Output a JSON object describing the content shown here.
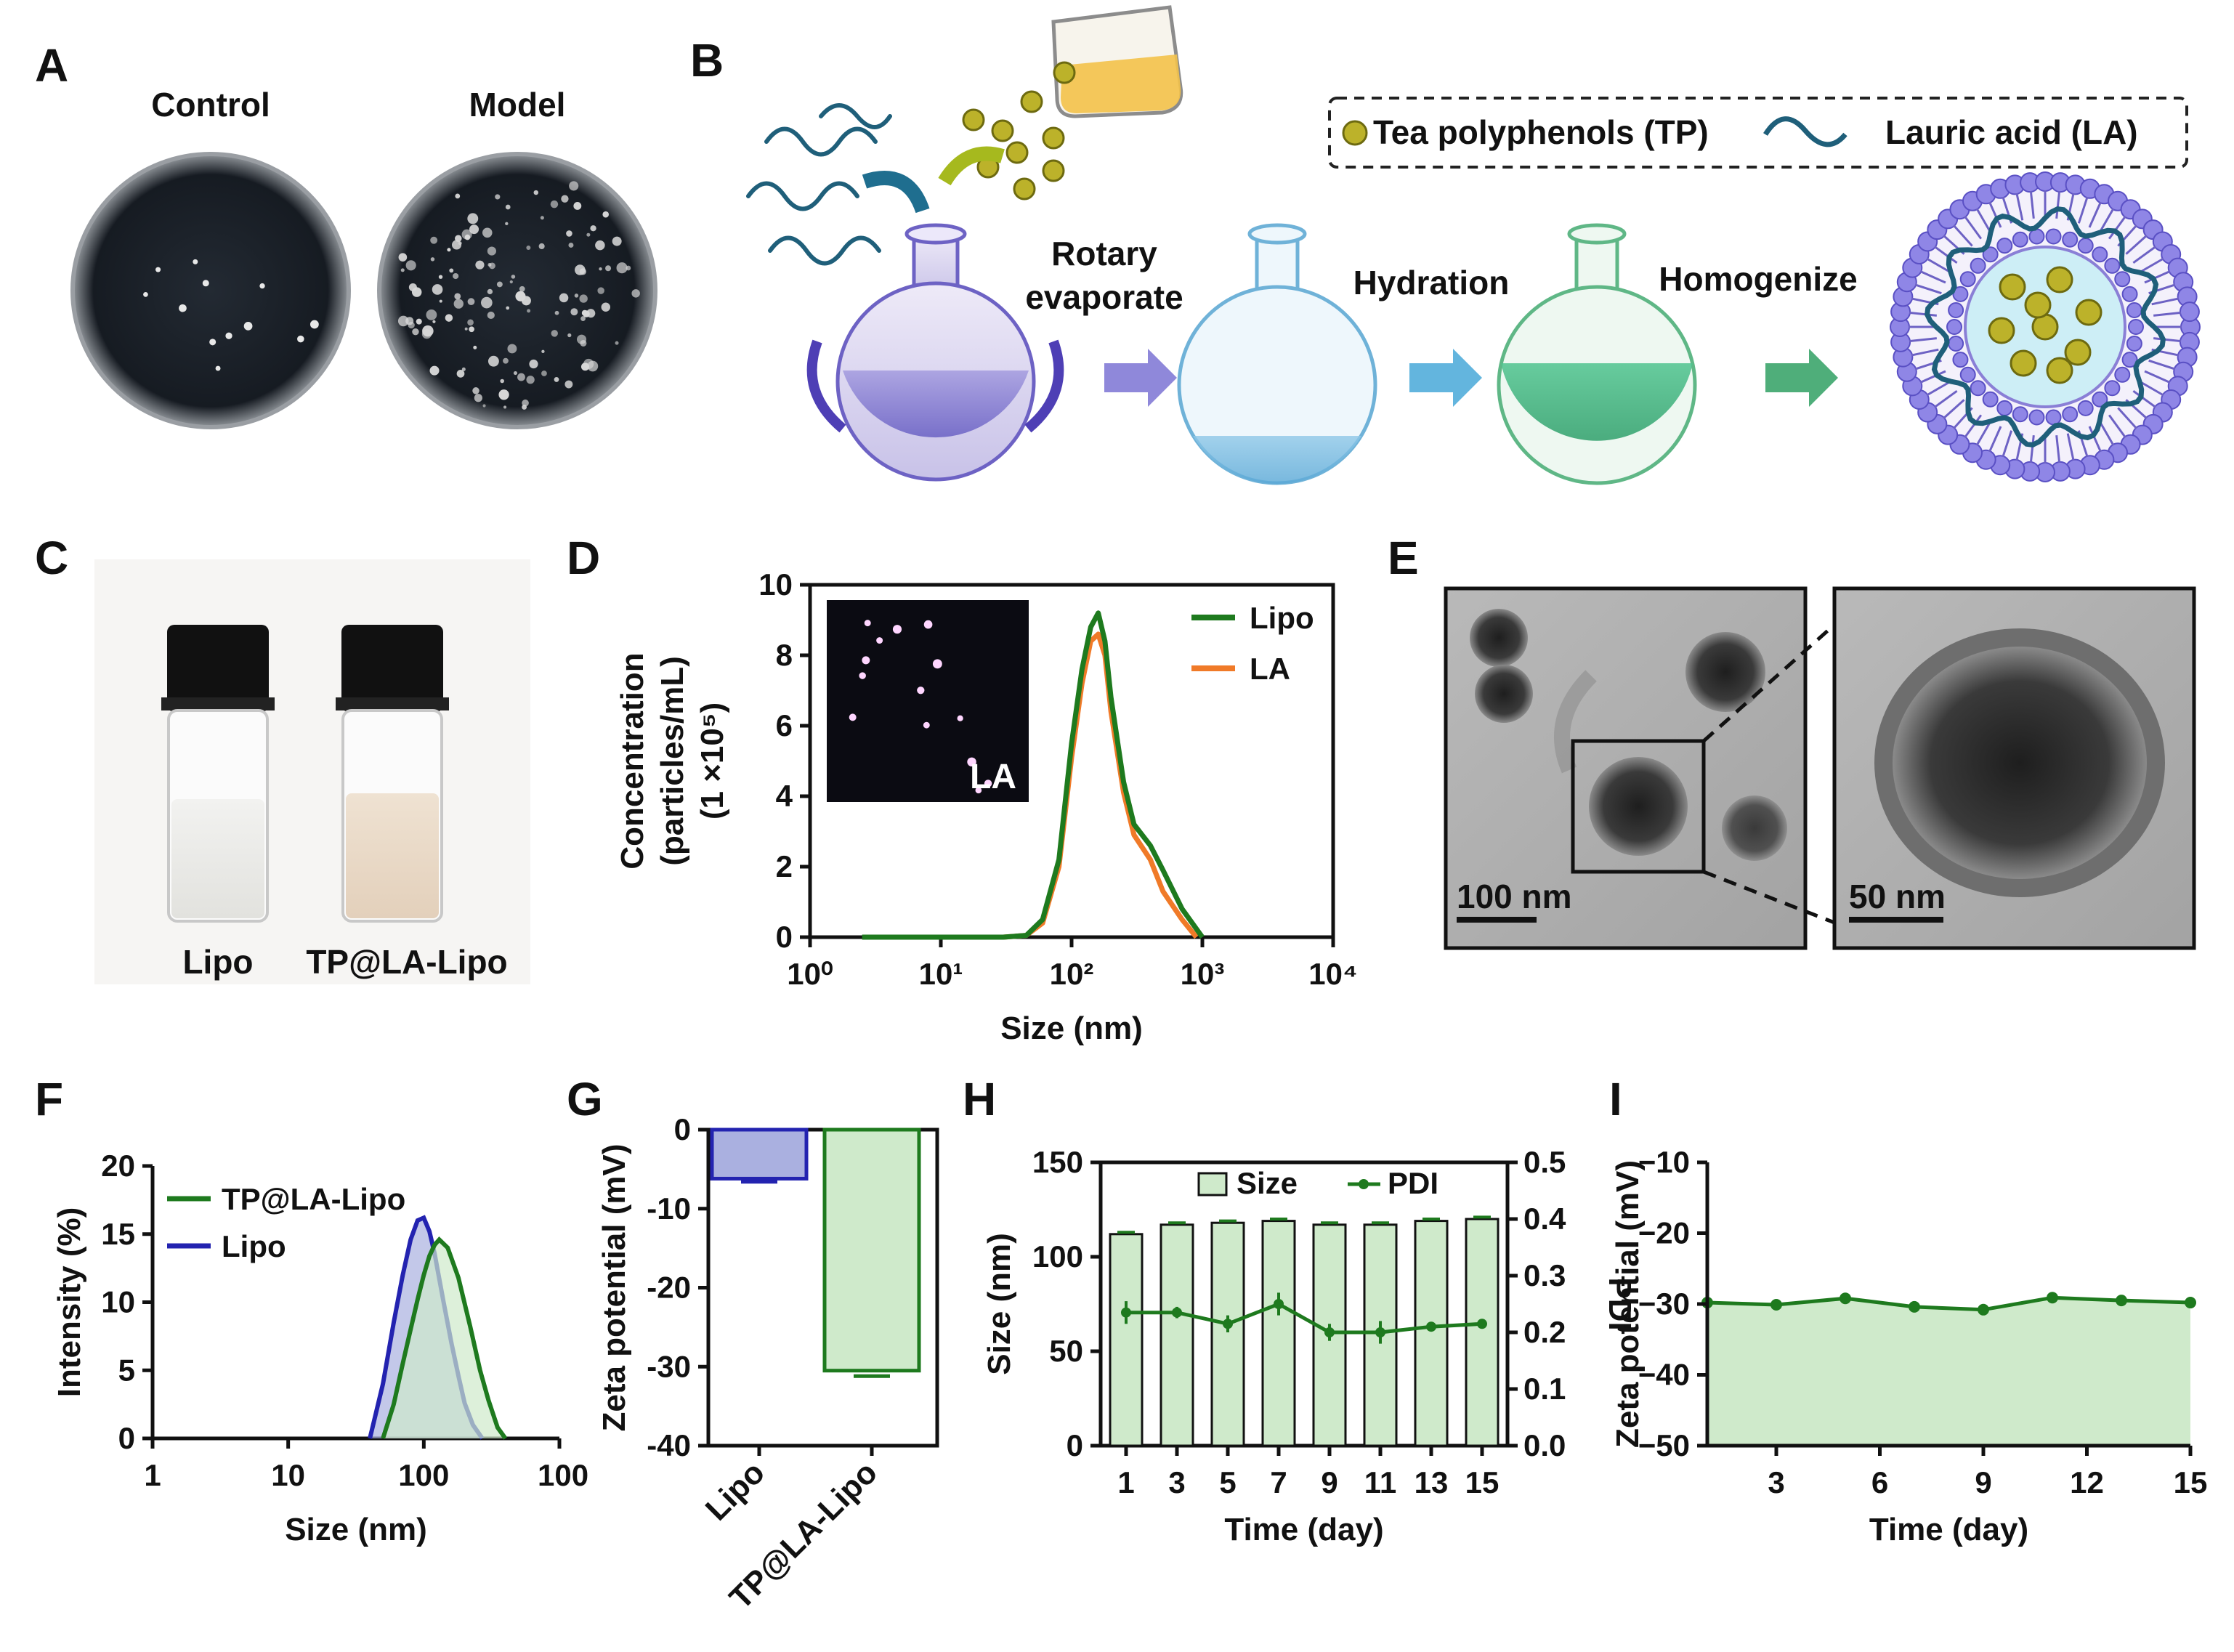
{
  "panels": {
    "A": {
      "label": "A",
      "plates": [
        "Control",
        "Model"
      ]
    },
    "B": {
      "label": "B",
      "legend": [
        "Tea polyphenols (TP)",
        "Lauric acid (LA)"
      ],
      "steps": [
        "Rotary",
        "evaporate",
        "Hydration",
        "Homogenize"
      ]
    },
    "C": {
      "label": "C",
      "vials": [
        "Lipo",
        "TP@LA-Lipo"
      ]
    },
    "D": {
      "label": "D",
      "inset_label": "LA"
    },
    "E": {
      "label": "E",
      "scalebars": [
        "100 nm",
        "50 nm"
      ]
    },
    "F": {
      "label": "F"
    },
    "G": {
      "label": "G"
    },
    "H": {
      "label": "H"
    },
    "I": {
      "label": "I"
    }
  },
  "colors": {
    "lipo_blue": "#2323b0",
    "tp_green": "#1e7a1e",
    "la_orange": "#f07a28",
    "fill_green": "#cfeacb",
    "fill_blue": "#aab0e0"
  },
  "chart_data": [
    {
      "panel": "D",
      "type": "line",
      "xlabel": "Size (nm)",
      "ylabel_lines": [
        "Concentration",
        "(particles/mL)",
        "(1 ×10⁵)"
      ],
      "xscale": "log",
      "xlim": [
        1,
        10000
      ],
      "xticks": [
        "10⁰",
        "10¹",
        "10²",
        "10³",
        "10⁴"
      ],
      "ylim": [
        0,
        10
      ],
      "yticks": [
        "0",
        "2",
        "4",
        "6",
        "8",
        "10"
      ],
      "legend_position": "top-right",
      "series": [
        {
          "name": "Lipo",
          "x": [
            2.5,
            30,
            45,
            60,
            80,
            100,
            120,
            140,
            160,
            180,
            200,
            250,
            300,
            400,
            500,
            700,
            1000
          ],
          "y": [
            0,
            0,
            0.05,
            0.5,
            2.2,
            5.5,
            7.6,
            8.8,
            9.2,
            8.4,
            6.8,
            4.4,
            3.2,
            2.6,
            1.9,
            0.8,
            0
          ]
        },
        {
          "name": "LA",
          "x": [
            30,
            45,
            60,
            80,
            100,
            120,
            140,
            160,
            180,
            200,
            250,
            300,
            400,
            500,
            700,
            900
          ],
          "y": [
            0,
            0.05,
            0.4,
            2.0,
            5.1,
            7.2,
            8.4,
            8.6,
            8.0,
            6.4,
            4.1,
            2.9,
            2.2,
            1.3,
            0.5,
            0
          ]
        }
      ]
    },
    {
      "panel": "F",
      "type": "area",
      "xlabel": "Size (nm)",
      "ylabel": "Intensity (%)",
      "xscale": "log",
      "xlim": [
        1,
        1000
      ],
      "xticks": [
        "1",
        "10",
        "100",
        "100"
      ],
      "ylim": [
        0,
        20
      ],
      "yticks": [
        "0",
        "5",
        "10",
        "15",
        "20"
      ],
      "legend_position": "top-left",
      "series": [
        {
          "name": "TP@LA-Lipo",
          "x": [
            50,
            60,
            70,
            80,
            90,
            100,
            110,
            120,
            130,
            150,
            180,
            220,
            260,
            300,
            350,
            400
          ],
          "y": [
            0,
            2.5,
            5.5,
            8.0,
            10.2,
            12.0,
            13.4,
            14.2,
            14.6,
            14.0,
            11.8,
            8.2,
            5.0,
            2.8,
            0.8,
            0
          ]
        },
        {
          "name": "Lipo",
          "x": [
            40,
            50,
            60,
            70,
            80,
            90,
            100,
            110,
            120,
            140,
            160,
            180,
            200,
            230,
            270
          ],
          "y": [
            0,
            4.0,
            8.5,
            12.0,
            14.6,
            16.0,
            16.2,
            15.2,
            13.6,
            10.0,
            7.0,
            4.6,
            2.6,
            1.0,
            0
          ]
        }
      ]
    },
    {
      "panel": "G",
      "type": "bar",
      "ylabel": "Zeta potential (mV)",
      "categories": [
        "Lipo",
        "TP@LA-Lipo"
      ],
      "values": [
        -6.2,
        -30.5
      ],
      "errors": [
        0.4,
        0.7
      ],
      "ylim": [
        -40,
        0
      ],
      "yticks": [
        "0",
        "-10",
        "-20",
        "-30",
        "-40"
      ]
    },
    {
      "panel": "H",
      "type": "bar",
      "xlabel": "Time (day)",
      "ylabel": "Size (nm)",
      "ylabel_right": "PDI",
      "categories": [
        "1",
        "3",
        "5",
        "7",
        "9",
        "11",
        "13",
        "15"
      ],
      "ylim": [
        0,
        150
      ],
      "yticks": [
        "0",
        "50",
        "100",
        "150"
      ],
      "y2lim": [
        0,
        0.5
      ],
      "y2ticks": [
        "0.0",
        "0.1",
        "0.2",
        "0.3",
        "0.4",
        "0.5"
      ],
      "legend_position": "top",
      "series": [
        {
          "name": "Size",
          "values": [
            112,
            117,
            118,
            119,
            117,
            117,
            119,
            120
          ],
          "errors": [
            1,
            1,
            1,
            1,
            1,
            1,
            1,
            1
          ]
        },
        {
          "name": "PDI",
          "values": [
            0.235,
            0.235,
            0.215,
            0.25,
            0.2,
            0.2,
            0.21,
            0.215
          ],
          "errors": [
            0.02,
            0.01,
            0.015,
            0.02,
            0.015,
            0.02,
            0,
            0
          ]
        }
      ]
    },
    {
      "panel": "I",
      "type": "area",
      "xlabel": "Time (day)",
      "ylabel": "Zeta potential (mV)",
      "x": [
        1,
        3,
        5,
        7,
        9,
        11,
        13,
        15
      ],
      "values": [
        -29.8,
        -30.1,
        -29.2,
        -30.4,
        -30.8,
        -29.1,
        -29.5,
        -29.8
      ],
      "xlim": [
        1,
        15
      ],
      "xticks": [
        "3",
        "6",
        "9",
        "12",
        "15"
      ],
      "ylim": [
        -50,
        -10
      ],
      "yticks": [
        "−10",
        "−20",
        "−30",
        "−40",
        "−50"
      ]
    }
  ]
}
